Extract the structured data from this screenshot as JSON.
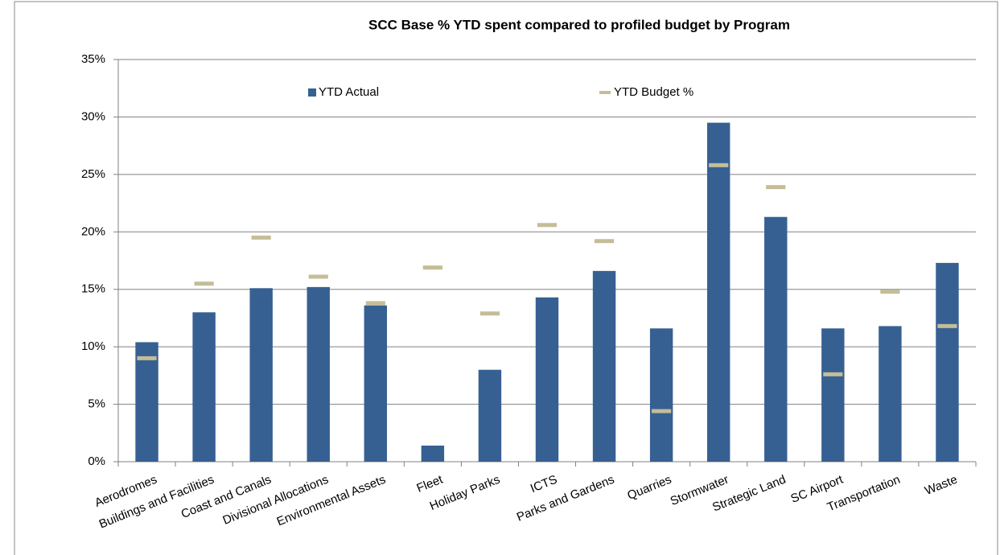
{
  "chart_data": {
    "type": "bar",
    "title": "SCC Base % YTD spent compared to profiled budget by Program",
    "categories": [
      "Aerodromes",
      "Buildings and Facilities",
      "Coast and Canals",
      "Divisional Allocations",
      "Environmental Assets",
      "Fleet",
      "Holiday Parks",
      "ICTS",
      "Parks and Gardens",
      "Quarries",
      "Stormwater",
      "Strategic Land",
      "SC Airport",
      "Transportation",
      "Waste"
    ],
    "series": [
      {
        "name": "YTD Actual",
        "color": "#376092",
        "style": "bar",
        "values": [
          10.4,
          13.0,
          15.1,
          15.2,
          13.6,
          1.4,
          8.0,
          14.3,
          16.6,
          11.6,
          29.5,
          21.3,
          11.6,
          11.8,
          17.3
        ]
      },
      {
        "name": "YTD Budget %",
        "color": "#c4bd97",
        "style": "dash",
        "values": [
          9.0,
          15.5,
          19.5,
          16.1,
          13.8,
          16.9,
          12.9,
          20.6,
          19.2,
          4.4,
          25.8,
          23.9,
          7.6,
          14.8,
          11.8
        ]
      }
    ],
    "ylim": [
      0,
      35
    ],
    "yticks": [
      {
        "value": 0,
        "label": "0%"
      },
      {
        "value": 5,
        "label": "5%"
      },
      {
        "value": 10,
        "label": "10%"
      },
      {
        "value": 15,
        "label": "15%"
      },
      {
        "value": 20,
        "label": "20%"
      },
      {
        "value": 25,
        "label": "25%"
      },
      {
        "value": 30,
        "label": "30%"
      },
      {
        "value": 35,
        "label": "35%"
      }
    ],
    "grid": true
  }
}
